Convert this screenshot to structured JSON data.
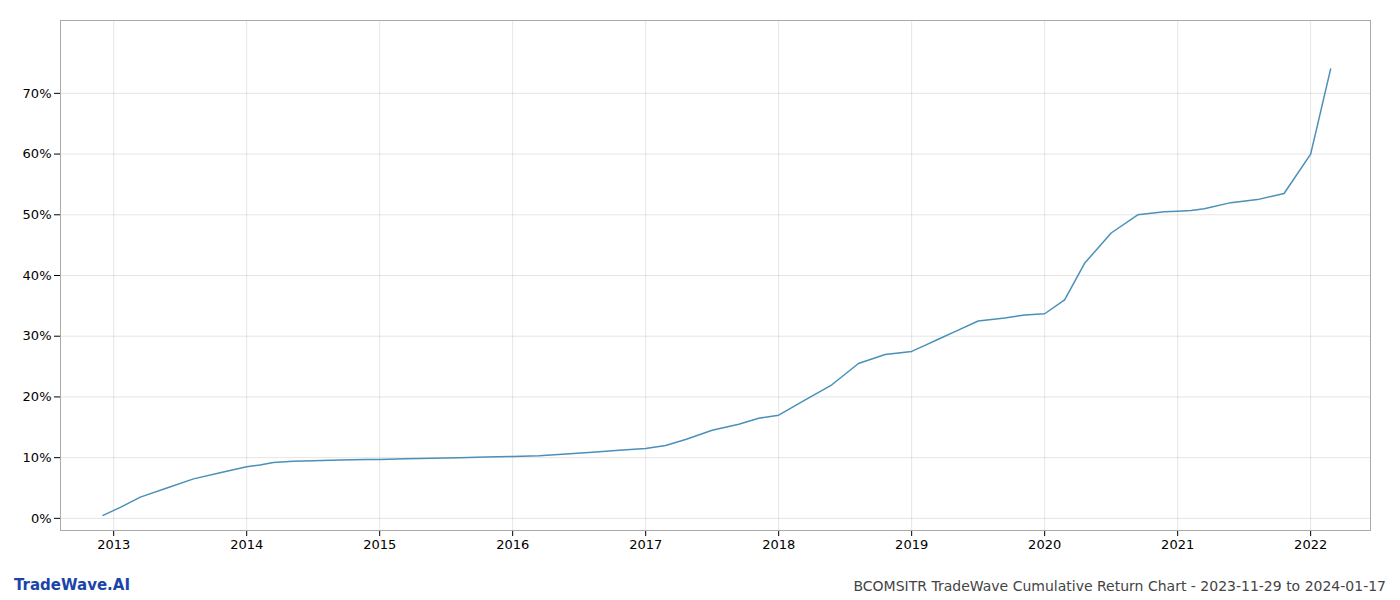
{
  "chart_data": {
    "type": "line",
    "title": "BCOMSITR TradeWave Cumulative Return Chart - 2023-11-29 to 2024-01-17",
    "annotations": [
      {
        "text": "TradeWave.AI"
      }
    ],
    "color": "#4a90b8",
    "grid": true,
    "x": [
      2012.92,
      2013.05,
      2013.2,
      2013.4,
      2013.6,
      2013.8,
      2014.0,
      2014.1,
      2014.2,
      2014.35,
      2014.5,
      2014.7,
      2014.9,
      2015.0,
      2015.2,
      2015.4,
      2015.6,
      2015.8,
      2016.0,
      2016.2,
      2016.4,
      2016.6,
      2016.8,
      2017.0,
      2017.15,
      2017.3,
      2017.5,
      2017.7,
      2017.85,
      2018.0,
      2018.2,
      2018.4,
      2018.6,
      2018.8,
      2019.0,
      2019.1,
      2019.2,
      2019.35,
      2019.5,
      2019.7,
      2019.85,
      2020.0,
      2020.15,
      2020.3,
      2020.5,
      2020.7,
      2020.9,
      2021.0,
      2021.1,
      2021.2,
      2021.4,
      2021.6,
      2021.8,
      2022.0,
      2022.15
    ],
    "values": [
      0.005,
      0.018,
      0.035,
      0.05,
      0.065,
      0.075,
      0.085,
      0.088,
      0.092,
      0.094,
      0.095,
      0.096,
      0.097,
      0.097,
      0.098,
      0.099,
      0.1,
      0.101,
      0.102,
      0.103,
      0.106,
      0.109,
      0.112,
      0.115,
      0.12,
      0.13,
      0.145,
      0.155,
      0.165,
      0.17,
      0.195,
      0.22,
      0.255,
      0.27,
      0.275,
      0.285,
      0.295,
      0.31,
      0.325,
      0.33,
      0.335,
      0.337,
      0.36,
      0.42,
      0.47,
      0.5,
      0.505,
      0.506,
      0.507,
      0.51,
      0.52,
      0.525,
      0.535,
      0.6,
      0.74
    ],
    "xlim": [
      2012.6,
      2022.45
    ],
    "xticks": [
      2013,
      2014,
      2015,
      2016,
      2017,
      2018,
      2019,
      2020,
      2021,
      2022
    ],
    "ylim": [
      -0.02,
      0.82
    ],
    "yticks": [
      {
        "value": 0.0,
        "label": "0%"
      },
      {
        "value": 0.1,
        "label": "10%"
      },
      {
        "value": 0.2,
        "label": "20%"
      },
      {
        "value": 0.3,
        "label": "30%"
      },
      {
        "value": 0.4,
        "label": "40%"
      },
      {
        "value": 0.5,
        "label": "50%"
      },
      {
        "value": 0.6,
        "label": "60%"
      },
      {
        "value": 0.7,
        "label": "70%"
      }
    ]
  }
}
